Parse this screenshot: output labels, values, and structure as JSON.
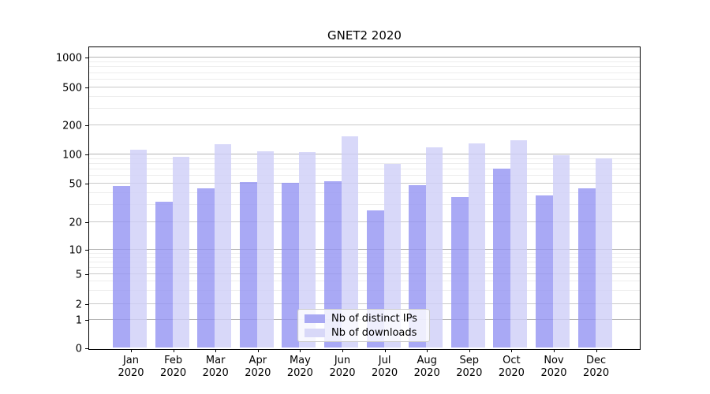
{
  "chart_data": {
    "type": "bar",
    "title": "GNET2 2020",
    "categories": [
      "Jan",
      "Feb",
      "Mar",
      "Apr",
      "May",
      "Jun",
      "Jul",
      "Aug",
      "Sep",
      "Oct",
      "Nov",
      "Dec"
    ],
    "category_year": "2020",
    "series": [
      {
        "name": "Nb of distinct IPs",
        "color": "#a9a9f3",
        "bar_fill": "rgba(147,147,242,0.8)",
        "values": [
          46,
          32,
          44,
          51,
          50,
          52,
          26,
          47,
          36,
          70,
          37,
          44
        ]
      },
      {
        "name": "Nb of downloads",
        "color": "#d8d8f8",
        "bar_fill": "rgba(206,206,247,0.8)",
        "values": [
          110,
          92,
          126,
          106,
          104,
          152,
          78,
          116,
          127,
          138,
          97,
          90
        ]
      }
    ],
    "yscale": "symlog",
    "yticks": [
      0,
      1,
      2,
      5,
      10,
      20,
      50,
      100,
      200,
      500,
      1000
    ],
    "ylim": [
      0,
      1000
    ],
    "xlabel": "",
    "ylabel": "",
    "grid": true,
    "legend_position": "lower center",
    "grid_colors": {
      "minor": "#ededed",
      "major": "#c9c9c9",
      "decade": "#b4b4b4"
    }
  }
}
